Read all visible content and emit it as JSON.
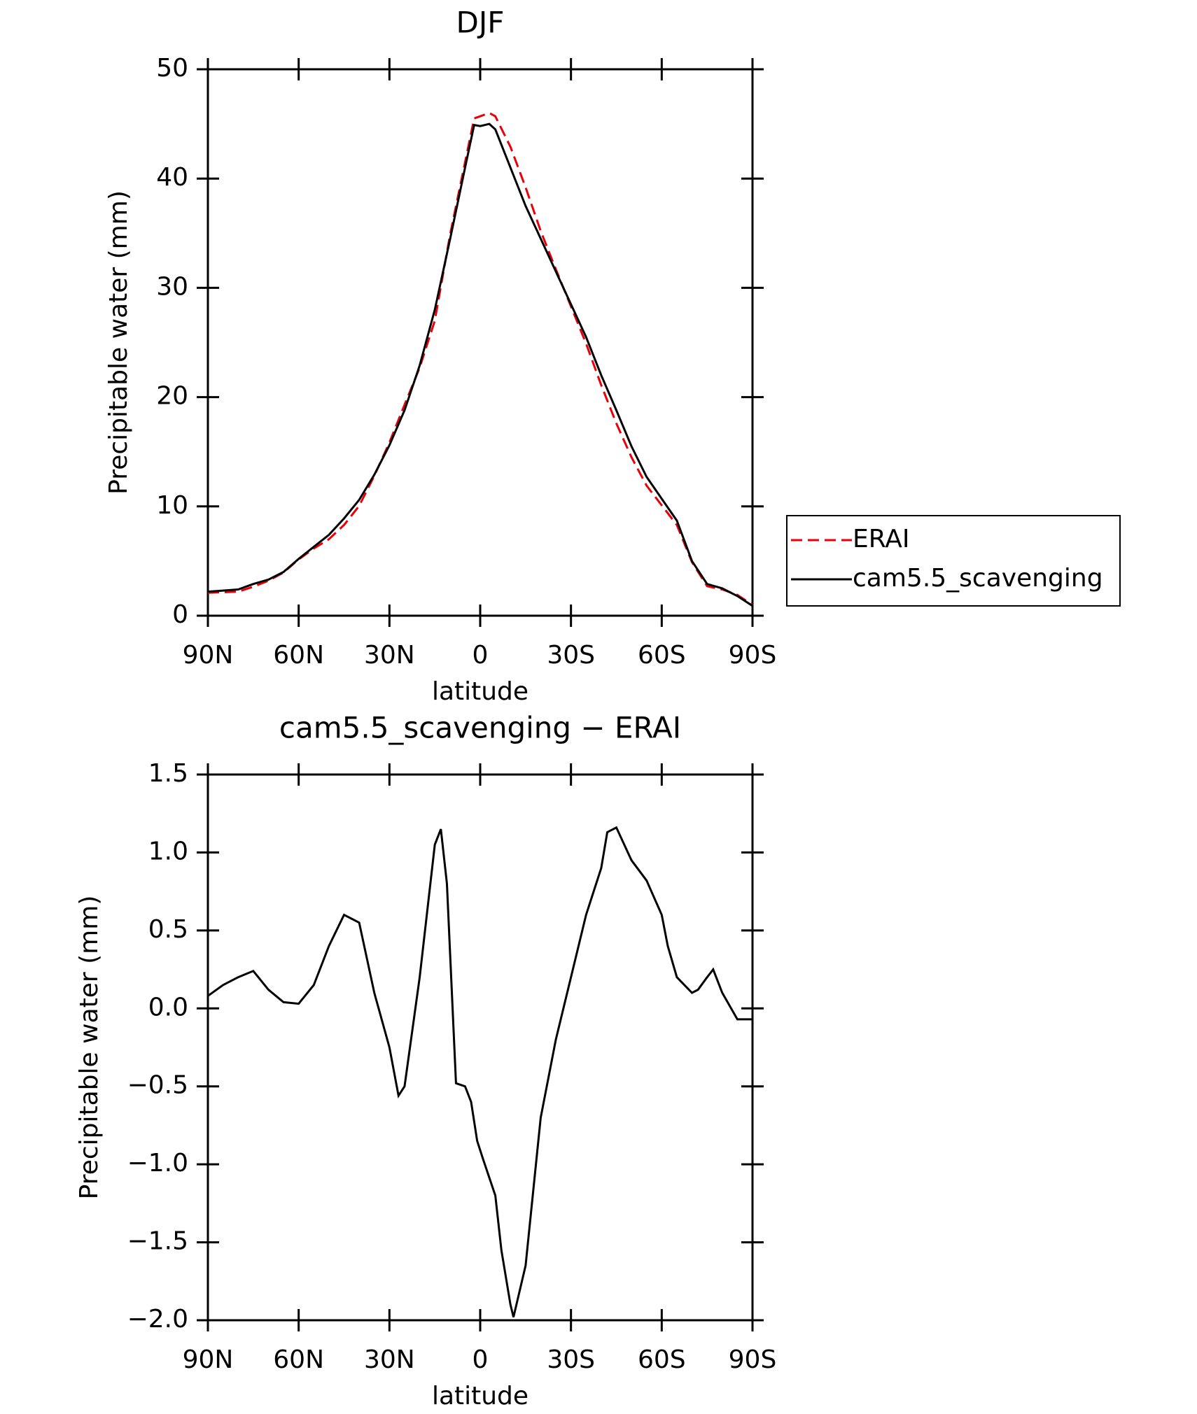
{
  "chart_data": [
    {
      "type": "line",
      "title": "DJF",
      "xlabel": "latitude",
      "ylabel": "Precipitable water (mm)",
      "x": [
        90,
        85,
        80,
        75,
        70,
        65,
        60,
        55,
        50,
        45,
        40,
        35,
        30,
        25,
        20,
        15,
        10,
        5,
        2,
        0,
        -3,
        -5,
        -10,
        -15,
        -20,
        -25,
        -30,
        -35,
        -40,
        -45,
        -50,
        -55,
        -60,
        -65,
        -70,
        -75,
        -80,
        -85,
        -90
      ],
      "series": [
        {
          "name": "ERAI",
          "color": "#e8000b",
          "dashed": true,
          "values": [
            2.1,
            2.15,
            2.2,
            2.65,
            3.2,
            3.95,
            5.15,
            6.15,
            7.0,
            8.3,
            10.05,
            12.8,
            15.85,
            19.3,
            22.7,
            27,
            34.8,
            41.5,
            45.5,
            45.7,
            46,
            45.7,
            42.9,
            39.2,
            35.2,
            31.7,
            28.3,
            24.9,
            21.1,
            17.6,
            14.5,
            11.9,
            10.1,
            8.3,
            4.9,
            2.7,
            2.4,
            1.9,
            1.0
          ]
        },
        {
          "name": "cam5.5_scavenging",
          "color": "#000000",
          "dashed": false,
          "values": [
            2.2,
            2.3,
            2.4,
            2.9,
            3.3,
            4.0,
            5.2,
            6.3,
            7.4,
            8.9,
            10.6,
            12.9,
            15.6,
            18.8,
            22.9,
            28,
            34.4,
            41,
            44.9,
            44.8,
            45,
            44.5,
            41,
            37.5,
            34.5,
            31.5,
            28.5,
            25.5,
            22,
            18.8,
            15.5,
            12.7,
            10.7,
            8.7,
            5,
            2.9,
            2.5,
            1.8,
            0.9
          ]
        }
      ],
      "xlim": [
        90,
        -90
      ],
      "xticks": [
        {
          "value": 90,
          "label": "90N"
        },
        {
          "value": 60,
          "label": "60N"
        },
        {
          "value": 30,
          "label": "30N"
        },
        0,
        {
          "value": -30,
          "label": "30S"
        },
        {
          "value": -60,
          "label": "60S"
        },
        {
          "value": -90,
          "label": "90S"
        }
      ],
      "ylim": [
        0,
        50
      ],
      "yticks": [
        0,
        10,
        20,
        30,
        40,
        50
      ],
      "legend": "right"
    },
    {
      "type": "line",
      "title": "cam5.5_scavenging − ERAI",
      "xlabel": "latitude",
      "ylabel": "Precipitable water (mm)",
      "color": "#000000",
      "x": [
        90,
        85,
        80,
        75,
        70,
        65,
        60,
        55,
        50,
        45,
        40,
        35,
        30,
        27,
        25,
        20,
        15,
        13,
        11,
        8,
        5,
        3,
        1,
        -1,
        -5,
        -7,
        -10,
        -11,
        -15,
        -20,
        -25,
        -30,
        -35,
        -40,
        -42,
        -45,
        -50,
        -55,
        -60,
        -62,
        -65,
        -70,
        -72,
        -75,
        -77,
        -80,
        -85,
        -90
      ],
      "values": [
        0.08,
        0.15,
        0.2,
        0.24,
        0.12,
        0.04,
        0.03,
        0.15,
        0.4,
        0.6,
        0.55,
        0.1,
        -0.25,
        -0.56,
        -0.5,
        0.2,
        1.05,
        1.15,
        0.8,
        -0.48,
        -0.5,
        -0.6,
        -0.85,
        -0.97,
        -1.2,
        -1.55,
        -1.9,
        -1.98,
        -1.65,
        -0.7,
        -0.2,
        0.2,
        0.6,
        0.9,
        1.13,
        1.16,
        0.95,
        0.82,
        0.6,
        0.4,
        0.2,
        0.1,
        0.12,
        0.2,
        0.25,
        0.1,
        -0.07,
        -0.07
      ],
      "xlim": [
        90,
        -90
      ],
      "xticks": [
        {
          "value": 90,
          "label": "90N"
        },
        {
          "value": 60,
          "label": "60N"
        },
        {
          "value": 30,
          "label": "30N"
        },
        0,
        {
          "value": -30,
          "label": "30S"
        },
        {
          "value": -60,
          "label": "60S"
        },
        {
          "value": -90,
          "label": "90S"
        }
      ],
      "ylim": [
        -2.0,
        1.5
      ],
      "yticks": [
        {
          "value": -2.0,
          "label": "−2.0"
        },
        {
          "value": -1.5,
          "label": "−1.5"
        },
        {
          "value": -1.0,
          "label": "−1.0"
        },
        {
          "value": -0.5,
          "label": "−0.5"
        },
        {
          "value": 0.0,
          "label": "0.0"
        },
        {
          "value": 0.5,
          "label": "0.5"
        },
        {
          "value": 1.0,
          "label": "1.0"
        },
        1.5
      ]
    }
  ]
}
